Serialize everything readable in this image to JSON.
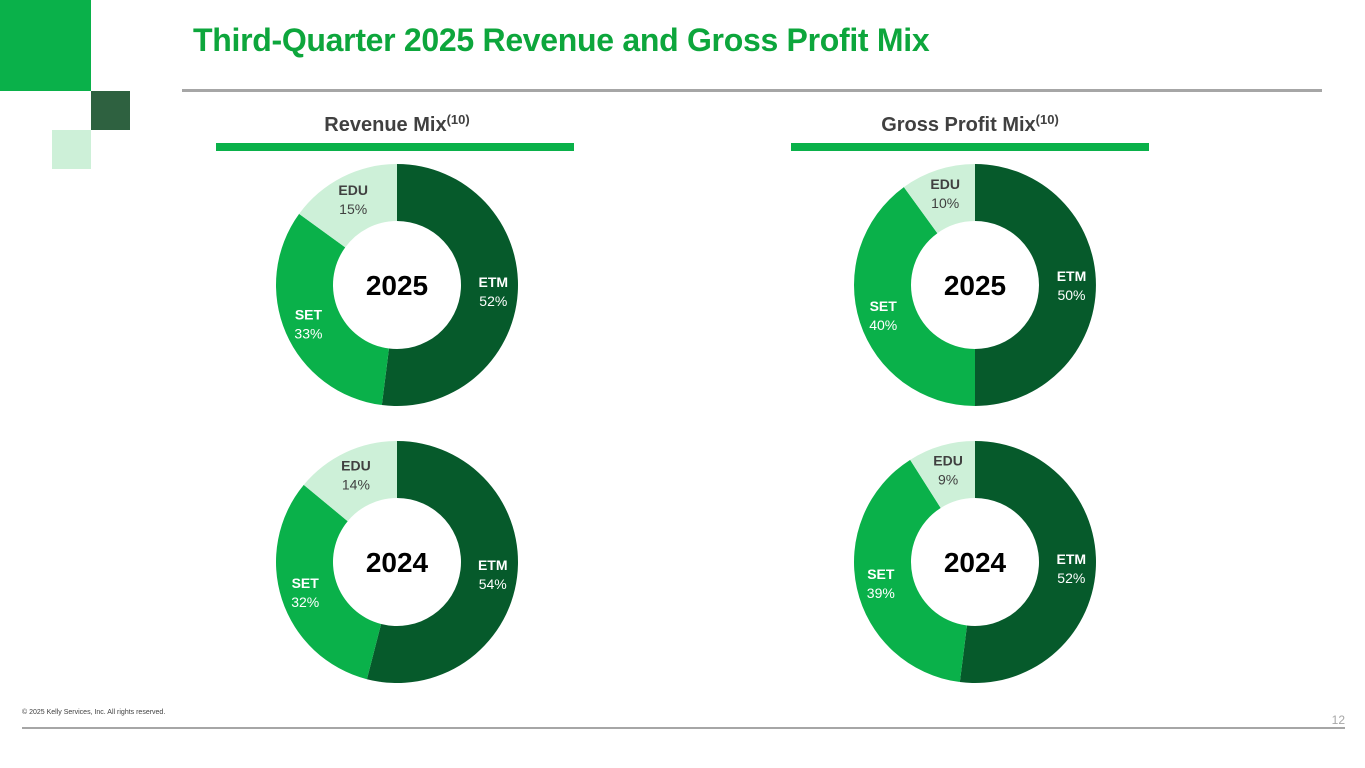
{
  "title": "Third-Quarter 2025 Revenue and Gross Profit Mix",
  "colors": {
    "title": "#0da63c",
    "accent_rule": "#0ab14a",
    "etm": "#065a2b",
    "set": "#0ab14a",
    "edu": "#cdf0d8",
    "deco_dark": "#2e6140",
    "deco_light": "#cdf0d8"
  },
  "sections": {
    "revenue": {
      "heading": "Revenue Mix",
      "note": "(10)"
    },
    "gross_profit": {
      "heading": "Gross Profit Mix",
      "note": "(10)"
    }
  },
  "chart_data": [
    {
      "type": "pie",
      "title": "Revenue Mix 2025",
      "center_label": "2025",
      "categories": [
        "ETM",
        "SET",
        "EDU"
      ],
      "values": [
        52,
        33,
        15
      ],
      "labels": [
        "52%",
        "33%",
        "15%"
      ]
    },
    {
      "type": "pie",
      "title": "Revenue Mix 2024",
      "center_label": "2024",
      "categories": [
        "ETM",
        "SET",
        "EDU"
      ],
      "values": [
        54,
        32,
        14
      ],
      "labels": [
        "54%",
        "32%",
        "14%"
      ]
    },
    {
      "type": "pie",
      "title": "Gross Profit Mix 2025",
      "center_label": "2025",
      "categories": [
        "ETM",
        "SET",
        "EDU"
      ],
      "values": [
        50,
        40,
        10
      ],
      "labels": [
        "50%",
        "40%",
        "10%"
      ]
    },
    {
      "type": "pie",
      "title": "Gross Profit Mix 2024",
      "center_label": "2024",
      "categories": [
        "ETM",
        "SET",
        "EDU"
      ],
      "values": [
        52,
        39,
        9
      ],
      "labels": [
        "52%",
        "39%",
        "9%"
      ]
    }
  ],
  "footer": {
    "copyright": "© 2025 Kelly Services, Inc. All rights reserved.",
    "page": "12"
  }
}
